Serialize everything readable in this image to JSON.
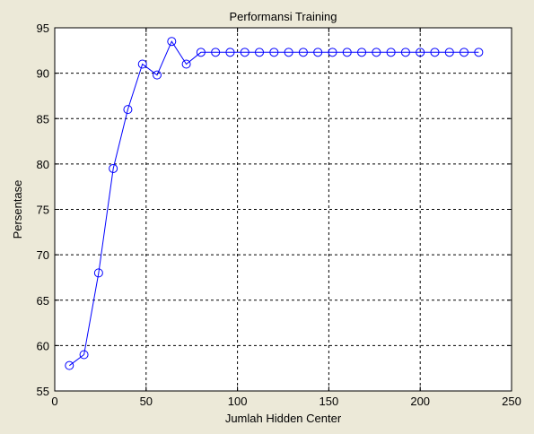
{
  "chart_data": {
    "type": "line",
    "title": "Performansi Training",
    "xlabel": "Jumlah Hidden Center",
    "ylabel": "Persentase",
    "xlim": [
      0,
      250
    ],
    "ylim": [
      55,
      95
    ],
    "xticks": [
      0,
      50,
      100,
      150,
      200,
      250
    ],
    "yticks": [
      55,
      60,
      65,
      70,
      75,
      80,
      85,
      90,
      95
    ],
    "grid": true,
    "grid_style": "dashed",
    "background": "#ece9d8",
    "plot_background": "#ffffff",
    "series": [
      {
        "color": "#0000ff",
        "marker": "circle",
        "x": [
          8,
          16,
          24,
          32,
          40,
          48,
          56,
          64,
          72,
          80,
          88,
          96,
          104,
          112,
          120,
          128,
          136,
          144,
          152,
          160,
          168,
          176,
          184,
          192,
          200,
          208,
          216,
          224,
          232
        ],
        "y": [
          57.8,
          59,
          68,
          79.5,
          86,
          91,
          89.8,
          93.5,
          91,
          92.3,
          92.3,
          92.3,
          92.3,
          92.3,
          92.3,
          92.3,
          92.3,
          92.3,
          92.3,
          92.3,
          92.3,
          92.3,
          92.3,
          92.3,
          92.3,
          92.3,
          92.3,
          92.3,
          92.3
        ]
      }
    ]
  }
}
